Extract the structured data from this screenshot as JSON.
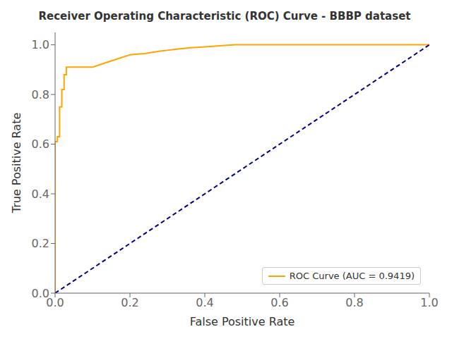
{
  "chart_data": {
    "type": "line",
    "title": "Receiver Operating Characteristic (ROC) Curve - BBBP dataset",
    "xlabel": "False Positive Rate",
    "ylabel": "True Positive Rate",
    "series": [
      {
        "name": "ROC Curve (AUC = 0.9419)",
        "color": "#FFA500",
        "line_style": "solid",
        "x": [
          0.0,
          0.0,
          0.0,
          0.0,
          0.0,
          0.006,
          0.006,
          0.012,
          0.012,
          0.018,
          0.018,
          0.024,
          0.024,
          0.03,
          0.03,
          0.04,
          0.05,
          0.06,
          0.07,
          0.08,
          0.09,
          0.1,
          0.11,
          0.12,
          0.13,
          0.14,
          0.15,
          0.16,
          0.18,
          0.2,
          0.22,
          0.24,
          0.26,
          0.27,
          0.28,
          0.3,
          0.32,
          0.34,
          0.36,
          0.38,
          0.4,
          0.42,
          0.44,
          0.46,
          0.48,
          0.5,
          0.6,
          0.7,
          0.8,
          0.9,
          1.0
        ],
        "values": [
          0.0,
          0.065,
          0.44,
          0.45,
          0.61,
          0.61,
          0.63,
          0.63,
          0.75,
          0.75,
          0.82,
          0.82,
          0.88,
          0.88,
          0.91,
          0.91,
          0.91,
          0.91,
          0.91,
          0.91,
          0.91,
          0.91,
          0.915,
          0.92,
          0.925,
          0.93,
          0.935,
          0.94,
          0.95,
          0.96,
          0.963,
          0.965,
          0.97,
          0.972,
          0.975,
          0.978,
          0.982,
          0.985,
          0.988,
          0.99,
          0.992,
          0.994,
          0.996,
          0.998,
          1.0,
          1.0,
          1.0,
          1.0,
          1.0,
          1.0,
          1.0
        ]
      },
      {
        "color": "#00008B",
        "line_style": "dashed",
        "x": [
          0,
          1
        ],
        "values": [
          0,
          1
        ]
      }
    ],
    "xlim": [
      0.0,
      1.0
    ],
    "ylim": [
      0.0,
      1.05
    ],
    "xticks": [
      {
        "value": 0,
        "label": "0.0"
      },
      0.2,
      0.4,
      0.6,
      0.8,
      {
        "value": 1,
        "label": "1.0"
      }
    ],
    "yticks": [
      {
        "value": 0,
        "label": "0.0"
      },
      0.2,
      0.4,
      0.6,
      0.8,
      {
        "value": 1,
        "label": "1.0"
      }
    ],
    "grid": false,
    "legend": "lower right"
  }
}
